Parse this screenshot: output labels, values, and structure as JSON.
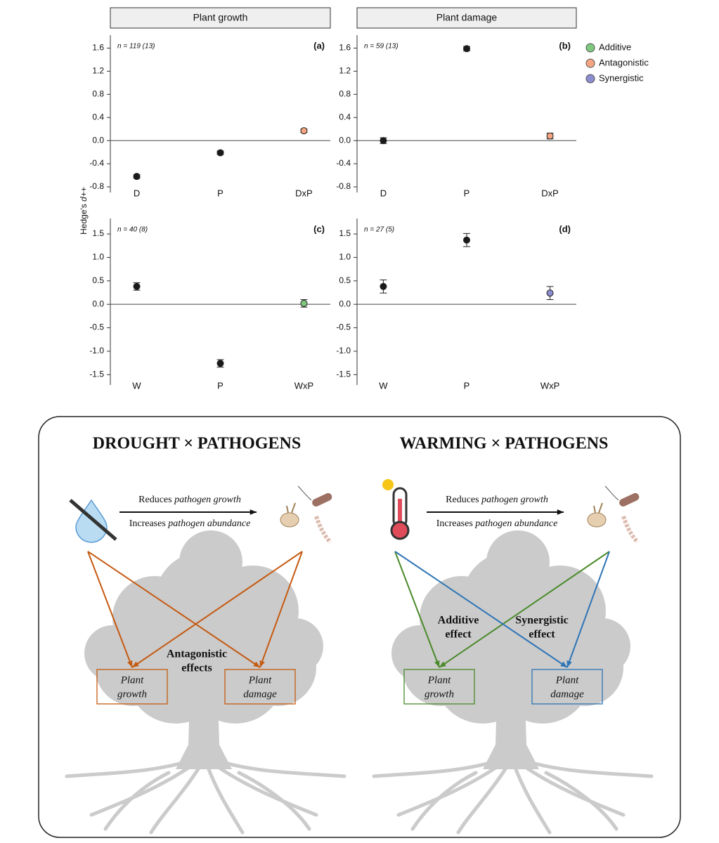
{
  "chart_data": [
    {
      "type": "dotplot",
      "strip": "Plant growth",
      "panel_label": "(a)",
      "n_label": "n = 119 (13)",
      "categories": [
        "D",
        "P",
        "DxP"
      ],
      "values": [
        -0.62,
        -0.21,
        0.17
      ],
      "errors": [
        0.03,
        0.03,
        0.03
      ],
      "colors": [
        "#1a1a1a",
        "#1a1a1a",
        "#f4a582"
      ],
      "ylim": [
        -0.8,
        1.8
      ],
      "yticks": [
        -0.8,
        -0.4,
        {
          "value": 0,
          "label": "0.0"
        },
        0.4,
        0.8,
        1.2,
        1.6
      ],
      "hline": 0
    },
    {
      "type": "dotplot",
      "strip": "Plant damage",
      "panel_label": "(b)",
      "n_label": "n = 59 (13)",
      "categories": [
        "D",
        "P",
        "DxP"
      ],
      "values": [
        0.0,
        1.59,
        0.08
      ],
      "errors": [
        0.05,
        0.04,
        0.05
      ],
      "colors": [
        "#1a1a1a",
        "#1a1a1a",
        "#f4a582"
      ],
      "ylim": [
        -0.8,
        1.8
      ],
      "yticks": [
        -0.8,
        -0.4,
        {
          "value": 0,
          "label": "0.0"
        },
        0.4,
        0.8,
        1.2,
        1.6
      ],
      "hline": 0,
      "legend": [
        {
          "name": "Additive",
          "color": "#7fc97f"
        },
        {
          "name": "Antagonistic",
          "color": "#f4a582"
        },
        {
          "name": "Synergistic",
          "color": "#8c8cd0"
        }
      ]
    },
    {
      "type": "dotplot",
      "panel_label": "(c)",
      "n_label": "n = 40 (8)",
      "categories": [
        "W",
        "P",
        "WxP"
      ],
      "values": [
        0.38,
        -1.26,
        0.02
      ],
      "errors": [
        0.08,
        0.08,
        0.08
      ],
      "colors": [
        "#1a1a1a",
        "#1a1a1a",
        "#7fc97f"
      ],
      "ylim": [
        -1.6,
        1.8
      ],
      "yticks": [
        -1.5,
        {
          "value": -1,
          "label": "-1.0"
        },
        -0.5,
        {
          "value": 0,
          "label": "0.0"
        },
        0.5,
        {
          "value": 1,
          "label": "1.0"
        },
        1.5
      ],
      "hline": 0
    },
    {
      "type": "dotplot",
      "panel_label": "(d)",
      "n_label": "n = 27 (5)",
      "categories": [
        "W",
        "P",
        "WxP"
      ],
      "values": [
        0.38,
        1.37,
        0.24
      ],
      "errors": [
        0.14,
        0.14,
        0.14
      ],
      "colors": [
        "#1a1a1a",
        "#1a1a1a",
        "#8c8cd0"
      ],
      "ylim": [
        -1.6,
        1.8
      ],
      "yticks": [
        -1.5,
        {
          "value": -1,
          "label": "-1.0"
        },
        -0.5,
        {
          "value": 0,
          "label": "0.0"
        },
        0.5,
        {
          "value": 1,
          "label": "1.0"
        },
        1.5
      ],
      "hline": 0
    }
  ],
  "y_label": {
    "plain": "Hedge's",
    "italic": "d++"
  },
  "diagram": {
    "panels": [
      {
        "title": "DROUGHT × PATHOGENS",
        "line1": {
          "plain": "Reduces",
          "italic": "pathogen growth"
        },
        "line2": {
          "plain": "Increases",
          "italic": "pathogen abundance"
        },
        "boxes": [
          {
            "lines": [
              "Plant",
              "growth"
            ],
            "color": "#c55a11"
          },
          {
            "lines": [
              "Plant",
              "damage"
            ],
            "color": "#c55a11"
          }
        ],
        "effects": [
          {
            "lines": [
              "Antagonistic",
              "effects"
            ],
            "color": "#c55a11"
          }
        ]
      },
      {
        "title": "WARMING × PATHOGENS",
        "line1": {
          "plain": "Reduces",
          "italic": "pathogen growth"
        },
        "line2": {
          "plain": "Increases",
          "italic": "pathogen abundance"
        },
        "boxes": [
          {
            "lines": [
              "Plant",
              "growth"
            ],
            "color": "#4a8a2a"
          },
          {
            "lines": [
              "Plant",
              "damage"
            ],
            "color": "#2e75b6"
          }
        ],
        "effects": [
          {
            "lines": [
              "Additive",
              "effect"
            ],
            "color": "#4a8a2a"
          },
          {
            "lines": [
              "Synergistic",
              "effect"
            ],
            "color": "#2e75b6"
          }
        ]
      }
    ]
  }
}
